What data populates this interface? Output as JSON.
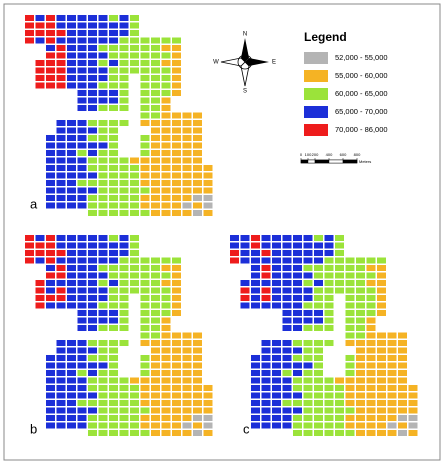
{
  "legend": {
    "title": "Legend",
    "items": [
      {
        "label": "52,000 - 55,000",
        "color": "#b4b4b4"
      },
      {
        "label": "55,000 - 60,000",
        "color": "#f5b324"
      },
      {
        "label": "60,000 - 65,000",
        "color": "#9be33a"
      },
      {
        "label": "65,000 - 70,000",
        "color": "#1c2fd8"
      },
      {
        "label": "70,000 - 86,000",
        "color": "#ee1c1c"
      }
    ]
  },
  "compass": {
    "n": "N",
    "s": "S",
    "e": "E",
    "w": "W"
  },
  "scale_bar": {
    "ticks": [
      0,
      100,
      200,
      400,
      600,
      800
    ],
    "unit": "Meters"
  },
  "panels": [
    {
      "label": "a"
    },
    {
      "label": "b"
    },
    {
      "label": "c"
    }
  ]
}
